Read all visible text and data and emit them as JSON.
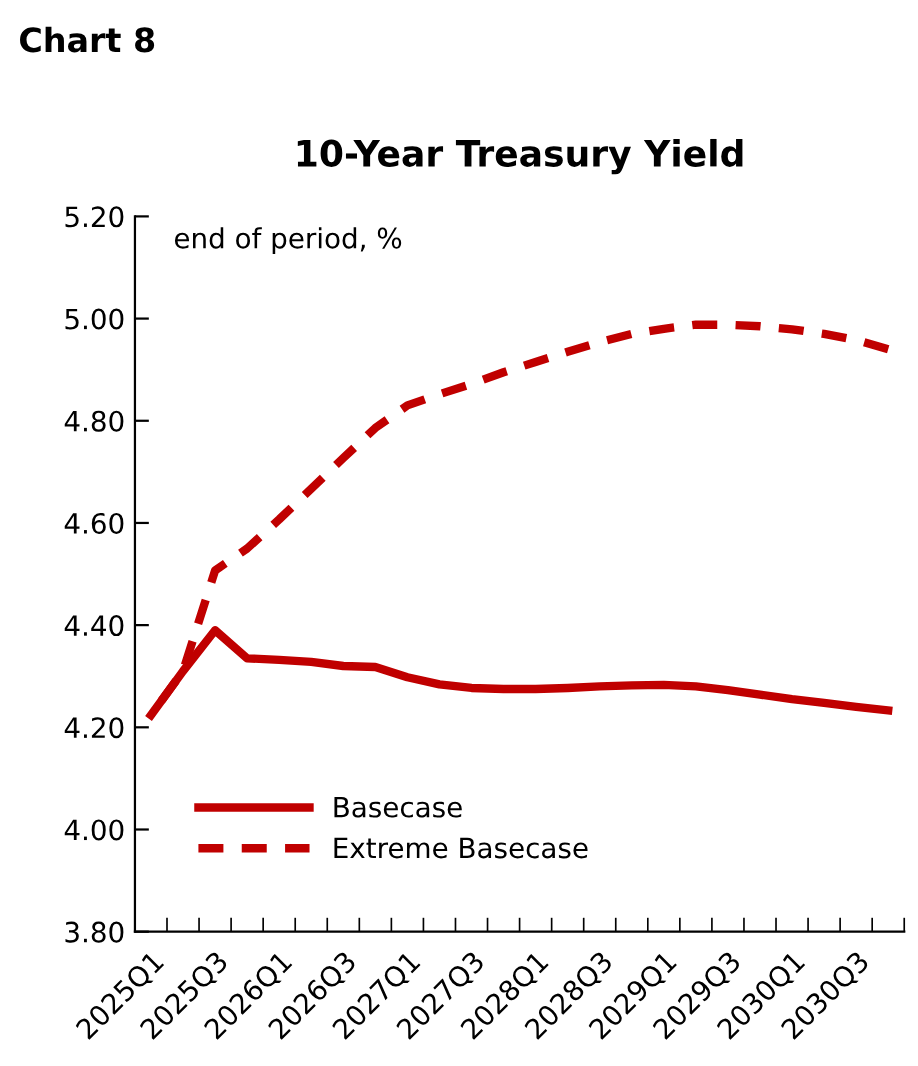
{
  "chart_data": {
    "type": "line",
    "title": "10-Year Treasury Yield",
    "annotations": [
      "Chart 8",
      "end of period, %"
    ],
    "categories": [
      "2025Q1",
      null,
      "2025Q3",
      null,
      "2026Q1",
      null,
      "2026Q3",
      null,
      "2027Q1",
      null,
      "2027Q3",
      null,
      "2028Q1",
      null,
      "2028Q3",
      null,
      "2029Q1",
      null,
      "2029Q3",
      null,
      "2030Q1",
      null,
      "2030Q3",
      null
    ],
    "series": [
      {
        "name": "Basecase",
        "color": "#c00000",
        "line_style": "solid",
        "values": [
          4.224,
          4.31,
          4.39,
          4.335,
          4.332,
          4.328,
          4.32,
          4.318,
          4.298,
          4.284,
          4.277,
          4.275,
          4.275,
          4.277,
          4.28,
          4.282,
          4.283,
          4.28,
          4.273,
          4.264,
          4.255,
          4.248,
          4.24,
          4.233
        ]
      },
      {
        "name": "Extreme Basecase",
        "color": "#c00000",
        "line_style": "dashed",
        "values": [
          4.224,
          4.31,
          4.507,
          4.55,
          4.607,
          4.667,
          4.727,
          4.786,
          4.83,
          4.852,
          4.872,
          4.895,
          4.915,
          4.935,
          4.954,
          4.97,
          4.98,
          4.988,
          4.988,
          4.985,
          4.979,
          4.97,
          4.958,
          4.94
        ]
      }
    ],
    "ylim": [
      3.8,
      5.2
    ],
    "yticks": [
      {
        "value": 3.8,
        "label": "3.80"
      },
      {
        "value": 4.0,
        "label": "4.00"
      },
      {
        "value": 4.2,
        "label": "4.20"
      },
      {
        "value": 4.4,
        "label": "4.40"
      },
      {
        "value": 4.6,
        "label": "4.60"
      },
      {
        "value": 4.8,
        "label": "4.80"
      },
      {
        "value": 5.0,
        "label": "5.00"
      },
      {
        "value": 5.2,
        "label": "5.20"
      }
    ],
    "grid": false,
    "legend": "bottom left",
    "marker": "none"
  }
}
